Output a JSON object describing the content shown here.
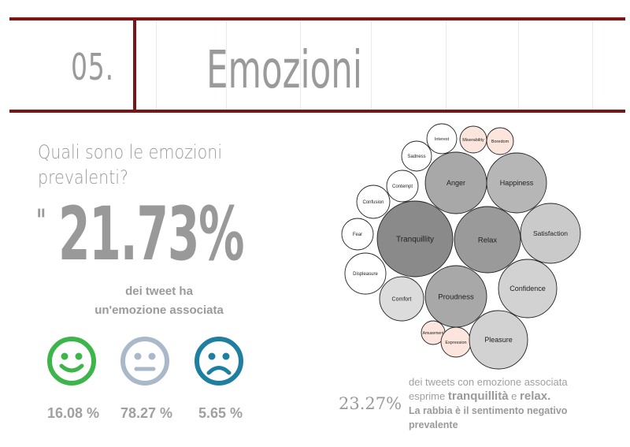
{
  "header": {
    "section_number": "05.",
    "title": "Emozioni"
  },
  "summary": {
    "question": "Quali sono le emozioni prevalenti?",
    "quote_mark": "\"",
    "percentage": "21.73%",
    "caption_line1": "dei tweet ha",
    "caption_line2": "un'emozione associata"
  },
  "sentiment": [
    {
      "icon": "happy-face-icon",
      "color": "#3cb54a",
      "value": "16.08 %"
    },
    {
      "icon": "neutral-face-icon",
      "color": "#a9b9c9",
      "value": "78.27 %"
    },
    {
      "icon": "sad-face-icon",
      "color": "#1f7fa0",
      "value": "5.65 %"
    }
  ],
  "chart_data": {
    "type": "bubble",
    "bubbles": [
      {
        "label": "Interest",
        "fill": "#ffffff"
      },
      {
        "label": "Miserability",
        "fill": "#fbe5dc"
      },
      {
        "label": "Boredom",
        "fill": "#fbe5dc"
      },
      {
        "label": "Sadness",
        "fill": "#ffffff"
      },
      {
        "label": "Anger",
        "fill": "#a8a8a8"
      },
      {
        "label": "Happiness",
        "fill": "#b6b6b6"
      },
      {
        "label": "Contempt",
        "fill": "#ffffff"
      },
      {
        "label": "Confusion",
        "fill": "#ffffff"
      },
      {
        "label": "Tranquillity",
        "fill": "#8a8a8a"
      },
      {
        "label": "Relax",
        "fill": "#9a9a9a"
      },
      {
        "label": "Satisfaction",
        "fill": "#cacaca"
      },
      {
        "label": "Fear",
        "fill": "#ffffff"
      },
      {
        "label": "Displeasure",
        "fill": "#ffffff"
      },
      {
        "label": "Comfort",
        "fill": "#dcdcdc"
      },
      {
        "label": "Proudness",
        "fill": "#a8a8a8"
      },
      {
        "label": "Confidence",
        "fill": "#d2d2d2"
      },
      {
        "label": "Amusement",
        "fill": "#fbe5dc"
      },
      {
        "label": "Expression",
        "fill": "#fbe5dc"
      },
      {
        "label": "Pleasure",
        "fill": "#d2d2d2"
      }
    ]
  },
  "stat": {
    "percentage": "23.27%",
    "line1": "dei tweets con emozione associata",
    "line2_prefix": "esprime",
    "highlight1": "tranquillità",
    "connector": "e",
    "highlight2": "relax.",
    "line3": "La rabbia è il sentimento negativo",
    "line4": "prevalente"
  }
}
